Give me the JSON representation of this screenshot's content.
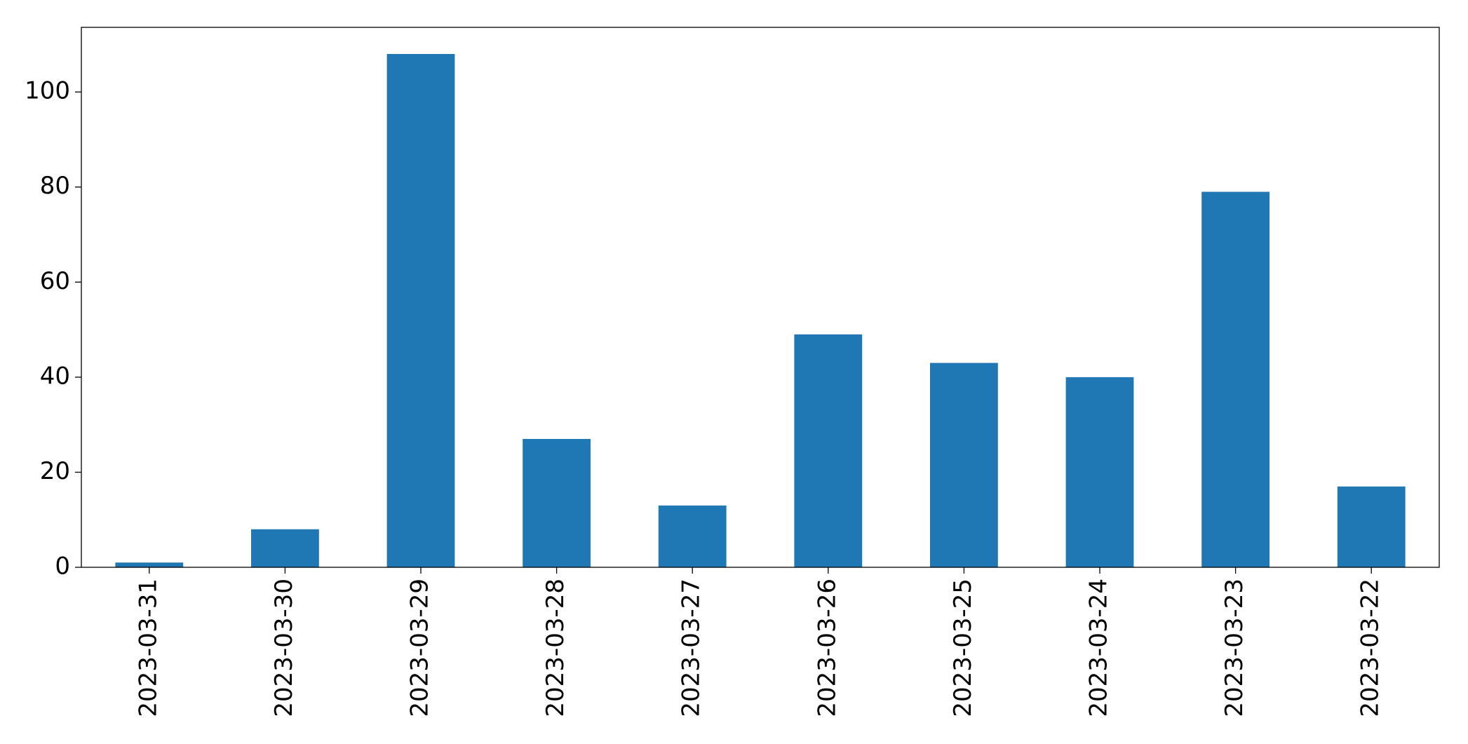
{
  "chart_data": {
    "type": "bar",
    "categories": [
      "2023-03-31",
      "2023-03-30",
      "2023-03-29",
      "2023-03-28",
      "2023-03-27",
      "2023-03-26",
      "2023-03-25",
      "2023-03-24",
      "2023-03-23",
      "2023-03-22"
    ],
    "values": [
      1,
      8,
      108,
      27,
      13,
      49,
      43,
      40,
      79,
      17
    ],
    "color": "#1f77b4",
    "ylim": [
      0,
      113.6
    ],
    "yticks": [
      0,
      20,
      40,
      60,
      80,
      100
    ],
    "grid": false
  }
}
